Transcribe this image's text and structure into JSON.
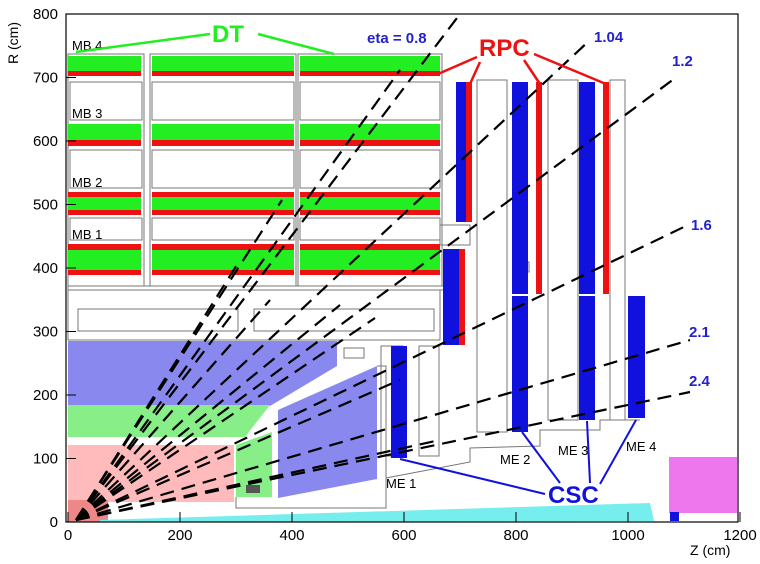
{
  "axes": {
    "x_title": "Z  (cm)",
    "y_title": "R  (cm)",
    "x_ticks": [
      "0",
      "200",
      "400",
      "600",
      "800",
      "1000",
      "1200"
    ],
    "y_ticks": [
      "0",
      "100",
      "200",
      "300",
      "400",
      "500",
      "600",
      "700",
      "800"
    ]
  },
  "groups": {
    "dt": "DT",
    "rpc": "RPC",
    "csc": "CSC"
  },
  "labels": {
    "mb": [
      "MB 4",
      "MB 3",
      "MB 2",
      "MB 1"
    ],
    "me": [
      "ME 1",
      "ME 2",
      "ME 3",
      "ME 4"
    ]
  },
  "eta": {
    "first": "eta = 0.8",
    "values": [
      "1.04",
      "1.2",
      "1.6",
      "2.1",
      "2.4"
    ]
  },
  "colors": {
    "dt": "#22ee22",
    "rpc": "#ee1111",
    "csc": "#1111dd",
    "eta_text": "#2222cc",
    "hcal": "#8888ee",
    "ecal": "#88ee88",
    "tracker": "#ffbbbb",
    "beam": "#77eeee",
    "forward": "#ee77ee"
  }
}
